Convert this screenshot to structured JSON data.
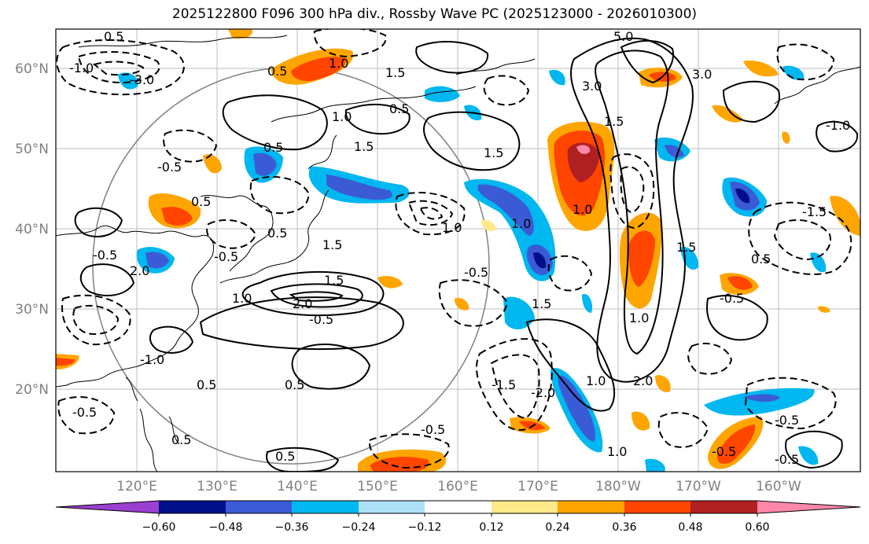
{
  "title": "2025122800 F096 300 hPa div., Rossby Wave PC (2025123000 - 2026010300)",
  "latitude_labels": [
    "60°N",
    "50°N",
    "40°N",
    "30°N",
    "20°N"
  ],
  "longitude_labels": [
    "120°E",
    "130°E",
    "140°E",
    "150°E",
    "160°E",
    "170°E",
    "180°W",
    "170°W",
    "160°W"
  ],
  "colorbar": {
    "tick_labels": [
      "−0.60",
      "−0.48",
      "−0.36",
      "−0.24",
      "−0.12",
      "0.12",
      "0.24",
      "0.36",
      "0.48",
      "0.60"
    ],
    "colors": [
      "#9a3fcf",
      "#000e8a",
      "#3b5bd6",
      "#00b7f0",
      "#aee0f8",
      "#ffffff",
      "#ffe98a",
      "#ffa500",
      "#ff4500",
      "#b02020",
      "#ff88aa"
    ]
  },
  "contour_labels": [
    "0.5",
    "1.0",
    "1.5",
    "2.0",
    "3.0",
    "5.0",
    "-0.5",
    "-1.0",
    "-1.5",
    "-2.0",
    "-3.0"
  ]
}
